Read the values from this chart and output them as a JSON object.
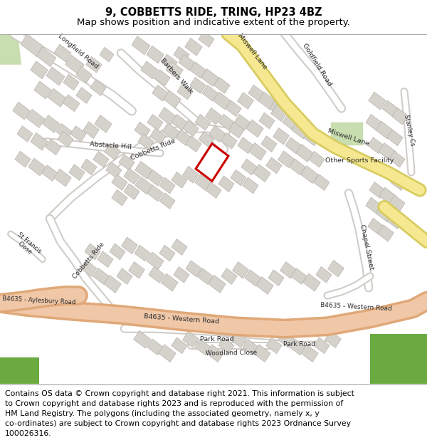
{
  "title_line1": "9, COBBETTS RIDE, TRING, HP23 4BZ",
  "title_line2": "Map shows position and indicative extent of the property.",
  "footer_text": "Contains OS data © Crown copyright and database right 2021. This information is subject\nto Crown copyright and database rights 2023 and is reproduced with the permission of\nHM Land Registry. The polygons (including the associated geometry, namely x, y\nco-ordinates) are subject to Crown copyright and database rights 2023 Ordnance Survey\n100026316.",
  "title_fontsize": 10.5,
  "subtitle_fontsize": 9.5,
  "footer_fontsize": 7.8,
  "map_bg": "#f2f0ec",
  "bld_fill": "#d5d2cc",
  "bld_edge": "#b8b5af",
  "road_fill": "#ffffff",
  "road_edge": "#d0cdc8",
  "b4635_fill": "#f0c8a8",
  "b4635_edge": "#e0a878",
  "yellow_fill": "#f5e890",
  "yellow_edge": "#d8cc60",
  "green_light": "#c8ddb0",
  "green_dark": "#6aaa40",
  "plot_color": "#cc0000",
  "plot_lw": 2.2,
  "white": "#ffffff",
  "fig_w": 6.0,
  "fig_h": 6.25,
  "dpi": 100
}
